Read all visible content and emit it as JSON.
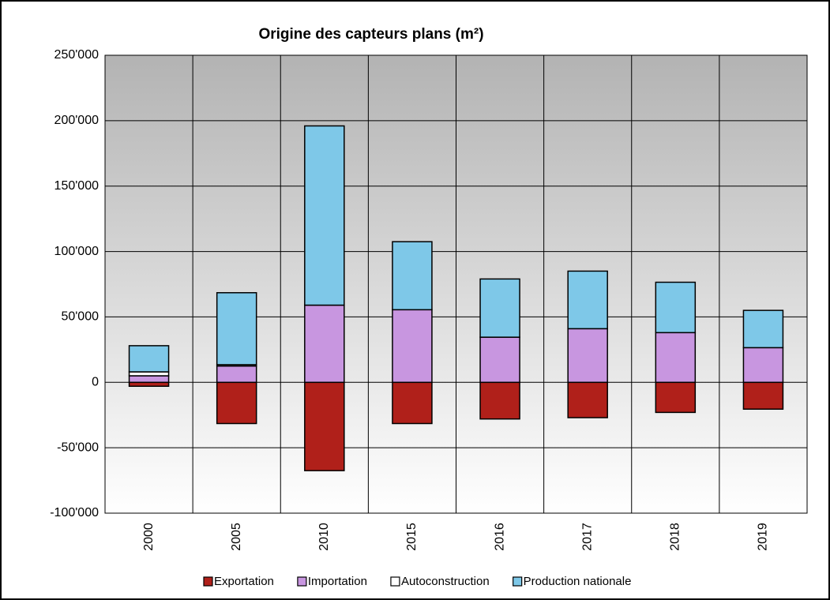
{
  "chart_data": {
    "type": "bar",
    "stacked": true,
    "title": "Origine des capteurs plans (m²)",
    "categories": [
      "2000",
      "2005",
      "2010",
      "2015",
      "2016",
      "2017",
      "2018",
      "2019"
    ],
    "series": [
      {
        "name": "Exportation",
        "color": "#b0201a",
        "values": [
          -3000,
          -31500,
          -67500,
          -31500,
          -28000,
          -27000,
          -23000,
          -20500
        ]
      },
      {
        "name": "Importation",
        "color": "#c896e0",
        "values": [
          5000,
          12500,
          59000,
          55500,
          34500,
          41000,
          38000,
          26500
        ]
      },
      {
        "name": "Autoconstruction",
        "color": "#ffffff",
        "values": [
          3000,
          1000,
          0,
          0,
          0,
          0,
          0,
          0
        ]
      },
      {
        "name": "Production nationale",
        "color": "#7ec8e8",
        "values": [
          20000,
          55000,
          137000,
          52000,
          44500,
          44000,
          38500,
          28500
        ]
      }
    ],
    "ylim": [
      -100000,
      250000
    ],
    "yticks": [
      {
        "value": -100000,
        "label": "-100'000"
      },
      {
        "value": -50000,
        "label": "-50'000"
      },
      0,
      {
        "value": 50000,
        "label": "50'000"
      },
      {
        "value": 100000,
        "label": "100'000"
      },
      {
        "value": 150000,
        "label": "150'000"
      },
      {
        "value": 200000,
        "label": "200'000"
      },
      {
        "value": 250000,
        "label": "250'000"
      }
    ],
    "grid": true,
    "legend": "bottom"
  }
}
